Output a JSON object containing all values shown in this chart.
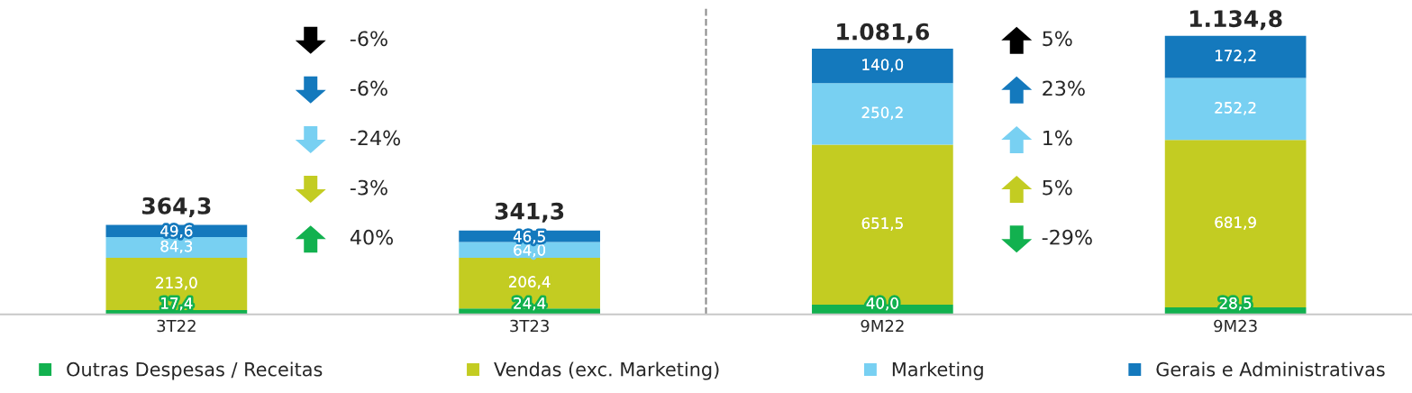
{
  "chart_data": {
    "type": "bar",
    "stacked": true,
    "categories": [
      "3T22",
      "3T23",
      "9M22",
      "9M23"
    ],
    "series": [
      {
        "name": "Outras Despesas / Receitas",
        "color": "#12b14f",
        "values": [
          17.4,
          24.4,
          40.0,
          28.5
        ],
        "value_labels": [
          "17,4",
          "24,4",
          "40,0",
          "28,5"
        ]
      },
      {
        "name": "Vendas (exc. Marketing)",
        "color": "#c3cc22",
        "values": [
          213.0,
          206.4,
          651.5,
          681.9
        ],
        "value_labels": [
          "213,0",
          "206,4",
          "651,5",
          "681,9"
        ]
      },
      {
        "name": "Marketing",
        "color": "#78d0f2",
        "values": [
          84.3,
          64.0,
          250.2,
          252.2
        ],
        "value_labels": [
          "84,3",
          "64,0",
          "250,2",
          "252,2"
        ]
      },
      {
        "name": "Gerais e Administrativas",
        "color": "#1479bd",
        "values": [
          49.6,
          46.5,
          140.0,
          172.2
        ],
        "value_labels": [
          "49,6",
          "46,5",
          "140,0",
          "172,2"
        ]
      }
    ],
    "totals": [
      "364,3",
      "341,3",
      "1.081,6",
      "1.134,8"
    ],
    "annotations": [
      "-6%",
      "-6%",
      "-24%",
      "-3%",
      "40%",
      "5%",
      "23%",
      "1%",
      "5%",
      "-29%"
    ],
    "legend": "bottom"
  }
}
